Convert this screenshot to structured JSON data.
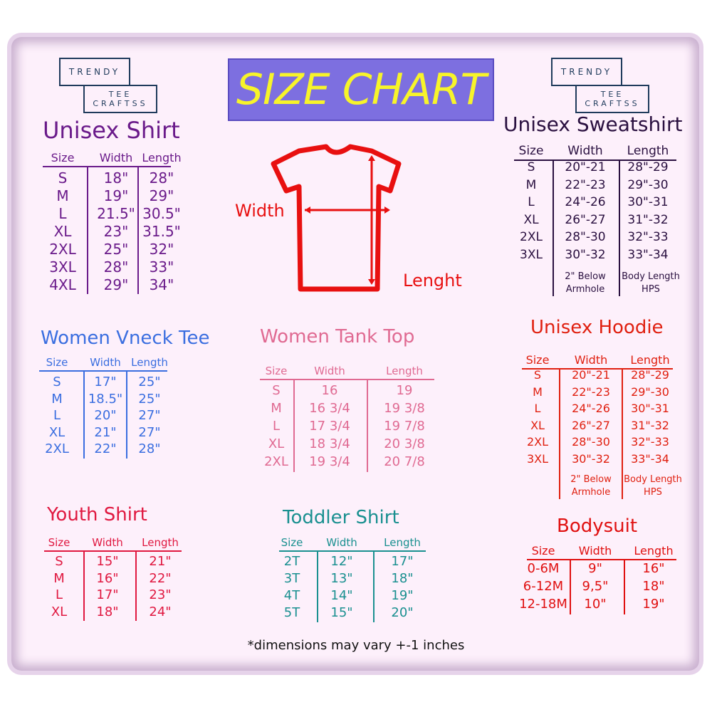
{
  "logo": {
    "line1": "TRENDY",
    "line2": "TEE",
    "line3": "CRAFTSS"
  },
  "title": "SIZE CHART",
  "diagram": {
    "width_label": "Width",
    "length_label": "Lenght",
    "color": "#e81010"
  },
  "footer": "*dimensions may vary +-1 inches",
  "sections": [
    {
      "id": "unisex-shirt",
      "title": "Unisex Shirt",
      "color": "#6a1a8a",
      "headers": [
        "Size",
        "Width",
        "Length"
      ],
      "rows": [
        [
          "S",
          "18\"",
          "28\""
        ],
        [
          "M",
          "19\"",
          "29\""
        ],
        [
          "L",
          "21.5\"",
          "30.5\""
        ],
        [
          "XL",
          "23\"",
          "31.5\""
        ],
        [
          "2XL",
          "25\"",
          "32\""
        ],
        [
          "3XL",
          "28\"",
          "33\""
        ],
        [
          "4XL",
          "29\"",
          "34\""
        ]
      ]
    },
    {
      "id": "unisex-sweatshirt",
      "title": "Unisex Sweatshirt",
      "color": "#2a1040",
      "headers": [
        "Size",
        "Width",
        "Length"
      ],
      "rows": [
        [
          "S",
          "20\"-21",
          "28\"-29"
        ],
        [
          "M",
          "22\"-23",
          "29\"-30"
        ],
        [
          "L",
          "24\"-26",
          "30\"-31"
        ],
        [
          "XL",
          "26\"-27",
          "31\"-32"
        ],
        [
          "2XL",
          "28\"-30",
          "32\"-33"
        ],
        [
          "3XL",
          "30\"-32",
          "33\"-34"
        ]
      ],
      "notes": [
        "2\" Below\nArmhole",
        "Body Length\nHPS"
      ]
    },
    {
      "id": "women-vneck-tee",
      "title": "Women Vneck Tee",
      "color": "#3a6ee0",
      "headers": [
        "Size",
        "Width",
        "Length"
      ],
      "rows": [
        [
          "S",
          "17\"",
          "25\""
        ],
        [
          "M",
          "18.5\"",
          "25\""
        ],
        [
          "L",
          "20\"",
          "27\""
        ],
        [
          "XL",
          "21\"",
          "27\""
        ],
        [
          "2XL",
          "22\"",
          "28\""
        ]
      ]
    },
    {
      "id": "women-tank-top",
      "title": "Women Tank Top",
      "color": "#e06a92",
      "headers": [
        "Size",
        "Width",
        "Length"
      ],
      "rows": [
        [
          "S",
          "16",
          "19"
        ],
        [
          "M",
          "16 3/4",
          "19 3/8"
        ],
        [
          "L",
          "17 3/4",
          "19 7/8"
        ],
        [
          "XL",
          "18 3/4",
          "20 3/8"
        ],
        [
          "2XL",
          "19 3/4",
          "20 7/8"
        ]
      ]
    },
    {
      "id": "unisex-hoodie",
      "title": "Unisex Hoodie",
      "color": "#e02010",
      "headers": [
        "Size",
        "Width",
        "Length"
      ],
      "rows": [
        [
          "S",
          "20\"-21",
          "28\"-29"
        ],
        [
          "M",
          "22\"-23",
          "29\"-30"
        ],
        [
          "L",
          "24\"-26",
          "30\"-31"
        ],
        [
          "XL",
          "26\"-27",
          "31\"-32"
        ],
        [
          "2XL",
          "28\"-30",
          "32\"-33"
        ],
        [
          "3XL",
          "30\"-32",
          "33\"-34"
        ]
      ],
      "notes": [
        "2\" Below\nArmhole",
        "Body Length\nHPS"
      ]
    },
    {
      "id": "youth-shirt",
      "title": "Youth Shirt",
      "color": "#e01840",
      "headers": [
        "Size",
        "Width",
        "Length"
      ],
      "rows": [
        [
          "S",
          "15\"",
          "21\""
        ],
        [
          "M",
          "16\"",
          "22\""
        ],
        [
          "L",
          "17\"",
          "23\""
        ],
        [
          "XL",
          "18\"",
          "24\""
        ]
      ]
    },
    {
      "id": "toddler-shirt",
      "title": "Toddler Shirt",
      "color": "#1a9090",
      "headers": [
        "Size",
        "Width",
        "Length"
      ],
      "rows": [
        [
          "2T",
          "12\"",
          "17\""
        ],
        [
          "3T",
          "13\"",
          "18\""
        ],
        [
          "4T",
          "14\"",
          "19\""
        ],
        [
          "5T",
          "15\"",
          "20\""
        ]
      ]
    },
    {
      "id": "bodysuit",
      "title": "Bodysuit",
      "color": "#e01010",
      "headers": [
        "Size",
        "Width",
        "Length"
      ],
      "rows": [
        [
          "0-6M",
          "9\"",
          "16\""
        ],
        [
          "6-12M",
          "9,5\"",
          "18\""
        ],
        [
          "12-18M",
          "10\"",
          "19\""
        ]
      ]
    }
  ]
}
